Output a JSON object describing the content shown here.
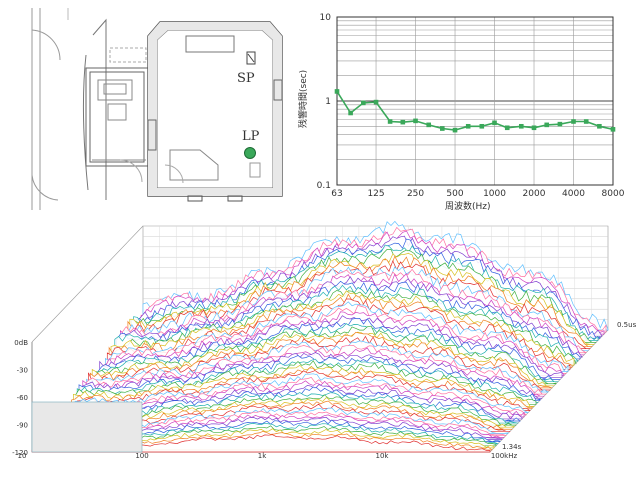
{
  "floorplan": {
    "labels": {
      "sp": "SP",
      "lp": "LP"
    },
    "lp_marker_color": "#3aa85a"
  },
  "chart_data": [
    {
      "type": "line",
      "title": "",
      "xlabel": "周波数(Hz)",
      "ylabel": "残響時間(sec)",
      "xscale": "log",
      "yscale": "log",
      "xlim": [
        63,
        8000
      ],
      "ylim": [
        0.1,
        10
      ],
      "x_tick_labels": [
        "63",
        "125",
        "250",
        "500",
        "1000",
        "2000",
        "4000",
        "8000"
      ],
      "y_tick_labels": [
        "0.1",
        "1",
        "10"
      ],
      "grid": true,
      "color": "#3aa85a",
      "series": [
        {
          "x": [
            63,
            80,
            100,
            125,
            160,
            200,
            250,
            315,
            400,
            500,
            630,
            800,
            1000,
            1250,
            1600,
            2000,
            2500,
            3150,
            4000,
            5000,
            6300,
            8000
          ],
          "y": [
            1.3,
            0.72,
            0.95,
            0.97,
            0.57,
            0.56,
            0.58,
            0.52,
            0.47,
            0.45,
            0.5,
            0.5,
            0.55,
            0.48,
            0.5,
            0.48,
            0.52,
            0.53,
            0.57,
            0.57,
            0.5,
            0.46
          ]
        }
      ]
    },
    {
      "type": "area",
      "subtype": "waterfall",
      "x_tick_labels": [
        "10",
        "100",
        "1k",
        "10k",
        "100kHz"
      ],
      "y_tick_labels": [
        "0dB",
        "-30",
        "-60",
        "-90",
        "-120"
      ],
      "z_tick_labels": [
        "0.5us",
        "1.34s"
      ],
      "ylim": [
        -120,
        0
      ],
      "slices": 60,
      "palette": [
        "#e03030",
        "#f08020",
        "#d8c020",
        "#40b040",
        "#20b0b0",
        "#3060e0",
        "#8040d0",
        "#d040c0",
        "#ff70a0",
        "#60c0ff"
      ]
    }
  ]
}
